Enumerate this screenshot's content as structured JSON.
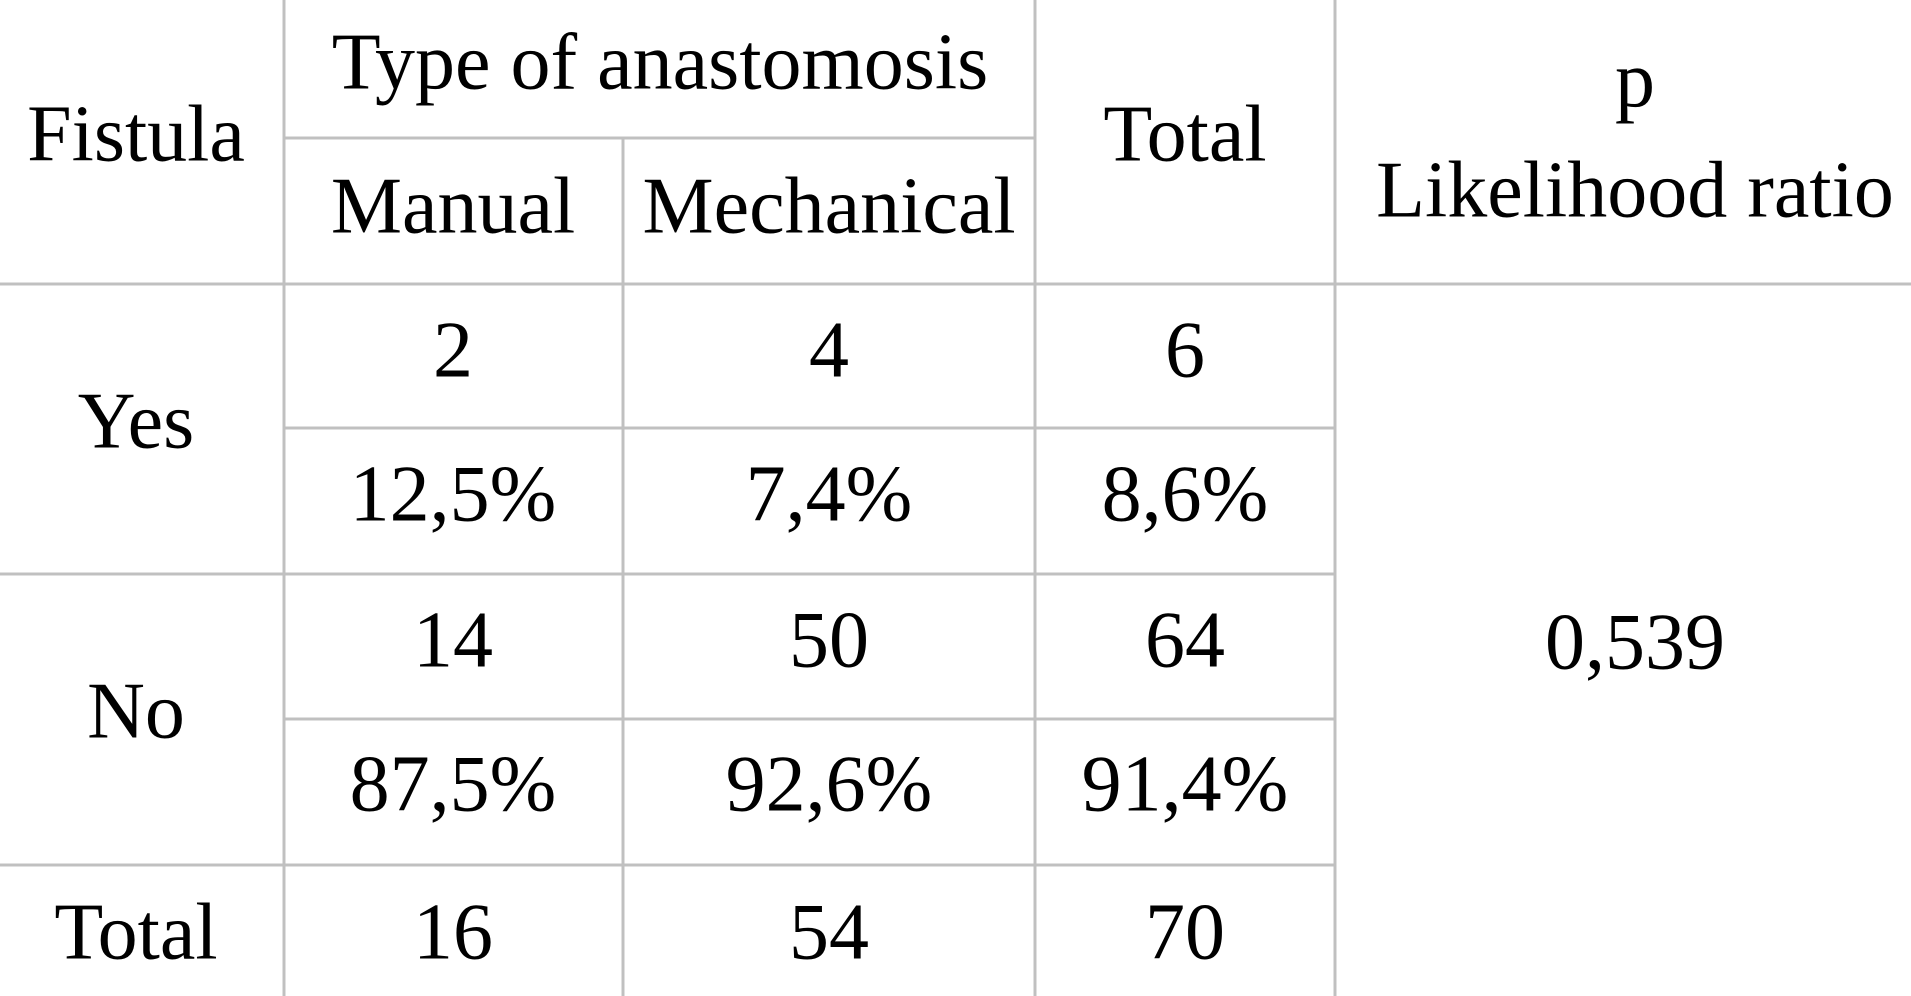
{
  "header": {
    "fistula": "Fistula",
    "type_of_anastomosis": "Type of anastomosis",
    "manual": "Manual",
    "mechanical": "Mechanical",
    "total": "Total",
    "p": "p",
    "likelihood_ratio": "Likelihood ratio"
  },
  "rows": [
    {
      "label": "Yes",
      "counts": [
        "2",
        "4",
        "6"
      ],
      "percents": [
        "12,5%",
        "7,4%",
        "8,6%"
      ]
    },
    {
      "label": "No",
      "counts": [
        "14",
        "50",
        "64"
      ],
      "percents": [
        "87,5%",
        "92,6%",
        "91,4%"
      ]
    }
  ],
  "total_row": {
    "label": "Total",
    "values": [
      "16",
      "54",
      "70"
    ]
  },
  "p_value": "0,539"
}
